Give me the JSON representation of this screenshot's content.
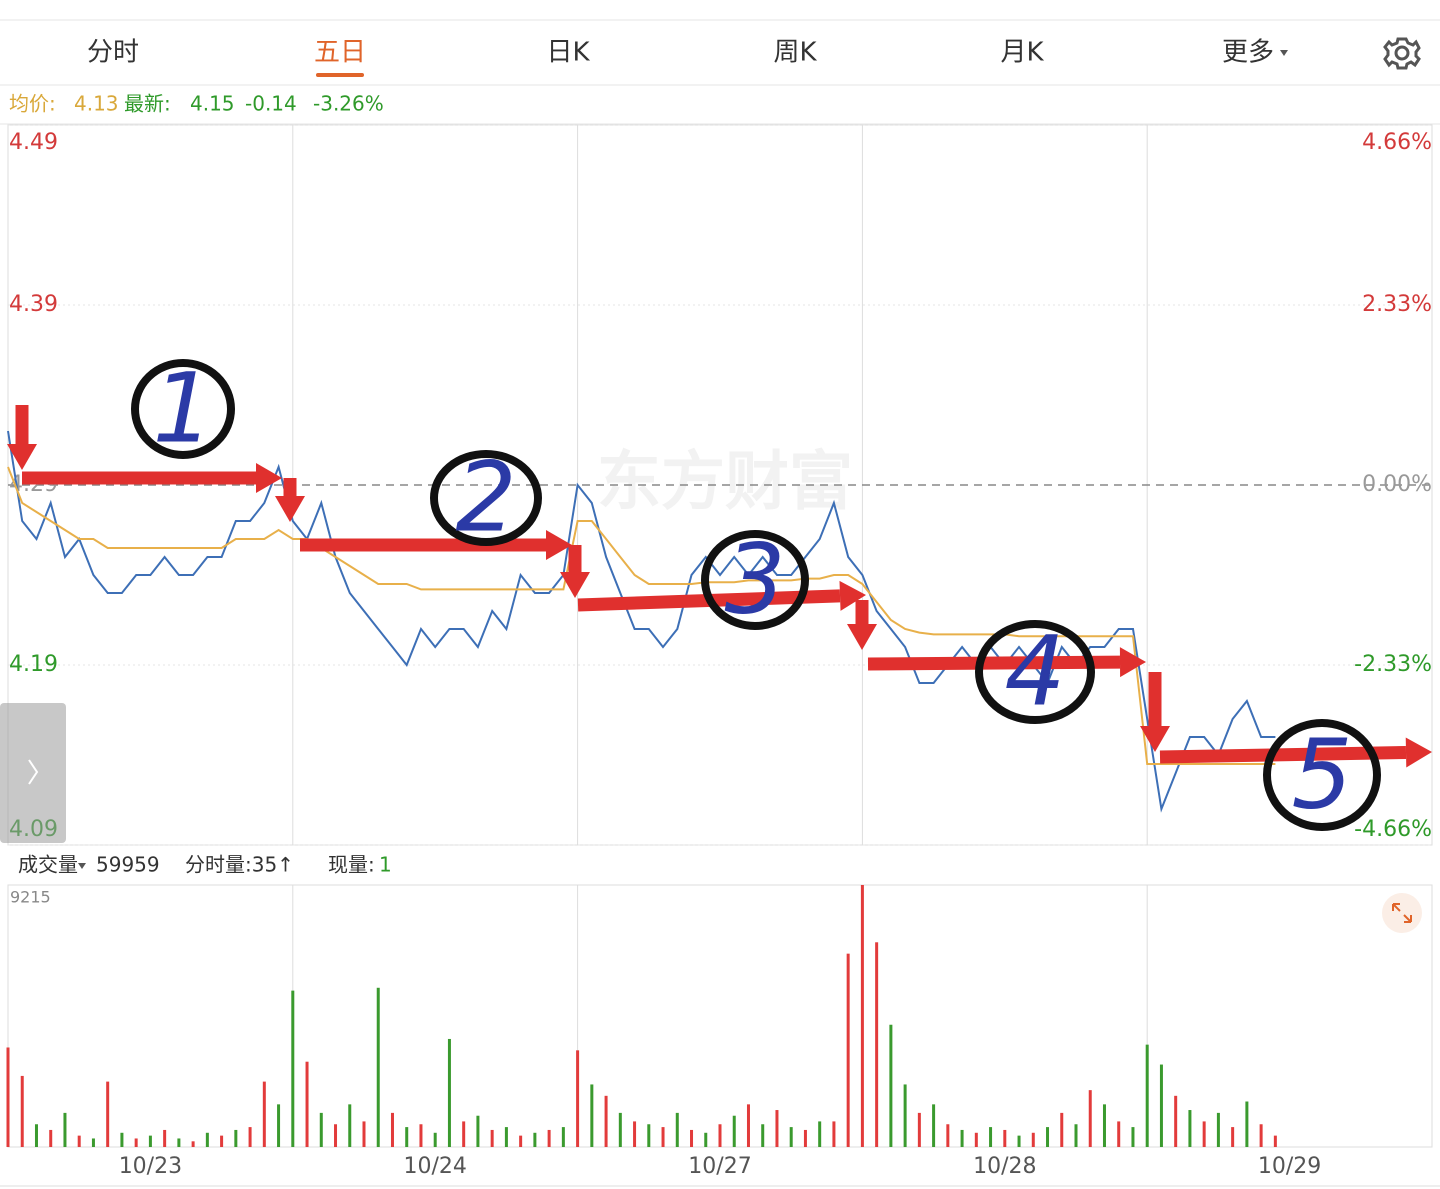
{
  "tabs": [
    "分时",
    "五日",
    "日K",
    "周K",
    "月K",
    "更多"
  ],
  "info": {
    "avg_label": "均价:",
    "avg": "4.13",
    "last_label": "最新:",
    "last": "4.15",
    "change": "-0.14",
    "change_pct": "-3.26%"
  },
  "watermark": "东方财富",
  "chart_data": [
    {
      "type": "line",
      "x": [
        0,
        1,
        2,
        3,
        4,
        5,
        6,
        7,
        8,
        9,
        10,
        11,
        12,
        13,
        14,
        15,
        16,
        17,
        18,
        19,
        20,
        21,
        22,
        23,
        24,
        25,
        26,
        27,
        28,
        29,
        30,
        31,
        32,
        33,
        34,
        35,
        36,
        37,
        38,
        39,
        40,
        41,
        42,
        43,
        44,
        45,
        46,
        47,
        48,
        49,
        50,
        51,
        52,
        53,
        54,
        55,
        56,
        57,
        58,
        59,
        60,
        61,
        62,
        63,
        64,
        65,
        66,
        67,
        68,
        69,
        70,
        71,
        72,
        73,
        74,
        75,
        76,
        77,
        78,
        79,
        80,
        81,
        82,
        83,
        84,
        85,
        86,
        87,
        88,
        89
      ],
      "xlim": [
        0,
        100
      ],
      "xticks": [
        {
          "value": 10,
          "label": "10/23"
        },
        {
          "value": 30,
          "label": "10/24"
        },
        {
          "value": 50,
          "label": "10/27"
        },
        {
          "value": 70,
          "label": "10/28"
        },
        {
          "value": 90,
          "label": "10/29"
        }
      ],
      "series": [
        {
          "color": "#3d6fb6",
          "values": [
            4.32,
            4.27,
            4.26,
            4.28,
            4.25,
            4.26,
            4.24,
            4.23,
            4.23,
            4.24,
            4.24,
            4.25,
            4.24,
            4.24,
            4.25,
            4.25,
            4.27,
            4.27,
            4.28,
            4.3,
            4.27,
            4.26,
            4.28,
            4.25,
            4.23,
            4.22,
            4.21,
            4.2,
            4.19,
            4.21,
            4.2,
            4.21,
            4.21,
            4.2,
            4.22,
            4.21,
            4.24,
            4.23,
            4.23,
            4.24,
            4.29,
            4.28,
            4.25,
            4.23,
            4.21,
            4.21,
            4.2,
            4.21,
            4.24,
            4.25,
            4.24,
            4.25,
            4.24,
            4.25,
            4.24,
            4.24,
            4.25,
            4.26,
            4.28,
            4.25,
            4.24,
            4.22,
            4.21,
            4.2,
            4.18,
            4.18,
            4.19,
            4.2,
            4.19,
            4.2,
            4.19,
            4.2,
            4.19,
            4.18,
            4.2,
            4.19,
            4.2,
            4.2,
            4.21,
            4.21,
            4.16,
            4.11,
            4.13,
            4.15,
            4.15,
            4.14,
            4.16,
            4.17,
            4.15,
            4.15
          ]
        },
        {
          "color": "#e8b04a",
          "values": [
            4.3,
            4.28,
            4.275,
            4.27,
            4.265,
            4.26,
            4.26,
            4.255,
            4.255,
            4.255,
            4.255,
            4.255,
            4.255,
            4.255,
            4.255,
            4.255,
            4.26,
            4.26,
            4.26,
            4.265,
            4.26,
            4.26,
            4.255,
            4.25,
            4.245,
            4.24,
            4.235,
            4.235,
            4.235,
            4.232,
            4.232,
            4.232,
            4.232,
            4.232,
            4.232,
            4.232,
            4.232,
            4.232,
            4.232,
            4.232,
            4.27,
            4.27,
            4.26,
            4.25,
            4.24,
            4.235,
            4.235,
            4.235,
            4.235,
            4.236,
            4.236,
            4.236,
            4.237,
            4.237,
            4.237,
            4.237,
            4.238,
            4.238,
            4.24,
            4.24,
            4.235,
            4.225,
            4.215,
            4.21,
            4.208,
            4.207,
            4.207,
            4.207,
            4.207,
            4.207,
            4.207,
            4.206,
            4.206,
            4.206,
            4.206,
            4.206,
            4.206,
            4.206,
            4.206,
            4.206,
            4.135,
            4.135,
            4.135,
            4.135,
            4.135,
            4.135,
            4.135,
            4.135,
            4.135,
            4.135
          ]
        }
      ],
      "ylim": [
        4.09,
        4.49
      ],
      "yticks": [
        4.49,
        4.39,
        4.29,
        4.19,
        4.09
      ],
      "reference": 4.29,
      "y2lim": [
        -4.66,
        4.66
      ],
      "y2ticks": [
        {
          "value": 4.66,
          "label": "4.66%"
        },
        {
          "value": 2.33,
          "label": "2.33%"
        },
        {
          "value": 0,
          "label": "0.00%"
        },
        {
          "value": -2.33,
          "label": "-2.33%"
        },
        {
          "value": -4.66,
          "label": "-4.66%"
        }
      ],
      "annotations": [
        "1",
        "2",
        "3",
        "4",
        "5"
      ]
    },
    {
      "type": "bar",
      "title": "成交量",
      "total": "59959",
      "minute_volume": "分时量:35↑",
      "current_label": "现量:",
      "current": "1",
      "x": [
        0,
        1,
        2,
        3,
        4,
        5,
        6,
        7,
        8,
        9,
        10,
        11,
        12,
        13,
        14,
        15,
        16,
        17,
        18,
        19,
        20,
        21,
        22,
        23,
        24,
        25,
        26,
        27,
        28,
        29,
        30,
        31,
        32,
        33,
        34,
        35,
        36,
        37,
        38,
        39,
        40,
        41,
        42,
        43,
        44,
        45,
        46,
        47,
        48,
        49,
        50,
        51,
        52,
        53,
        54,
        55,
        56,
        57,
        58,
        59,
        60,
        61,
        62,
        63,
        64,
        65,
        66,
        67,
        68,
        69,
        70,
        71,
        72,
        73,
        74,
        75,
        76,
        77,
        78,
        79,
        80,
        81,
        82,
        83,
        84,
        85,
        86,
        87,
        88,
        89
      ],
      "xlim": [
        0,
        100
      ],
      "values": [
        3500,
        2500,
        800,
        600,
        1200,
        400,
        300,
        2300,
        500,
        300,
        400,
        600,
        300,
        200,
        500,
        400,
        600,
        700,
        2300,
        1500,
        5500,
        3000,
        1200,
        800,
        1500,
        900,
        5600,
        1200,
        700,
        800,
        500,
        3800,
        900,
        1100,
        600,
        700,
        400,
        500,
        600,
        700,
        3400,
        2200,
        1800,
        1200,
        900,
        800,
        700,
        1200,
        600,
        500,
        800,
        1100,
        1500,
        800,
        1300,
        700,
        600,
        900,
        900,
        6800,
        9215,
        7200,
        4300,
        2200,
        1200,
        1500,
        800,
        600,
        500,
        700,
        600,
        400,
        500,
        700,
        1200,
        800,
        2000,
        1500,
        900,
        700,
        3600,
        2900,
        1800,
        1300,
        900,
        1200,
        700,
        1600,
        800,
        400
      ],
      "colors": [
        "#e23b3b",
        "#e23b3b",
        "#3a9a2e",
        "#e23b3b",
        "#3a9a2e",
        "#e23b3b",
        "#3a9a2e",
        "#e23b3b",
        "#3a9a2e",
        "#e23b3b",
        "#3a9a2e",
        "#e23b3b",
        "#3a9a2e",
        "#e23b3b",
        "#3a9a2e",
        "#e23b3b",
        "#3a9a2e",
        "#e23b3b",
        "#e23b3b",
        "#3a9a2e",
        "#3a9a2e",
        "#e23b3b",
        "#3a9a2e",
        "#e23b3b",
        "#3a9a2e",
        "#e23b3b",
        "#3a9a2e",
        "#e23b3b",
        "#3a9a2e",
        "#e23b3b",
        "#3a9a2e",
        "#3a9a2e",
        "#e23b3b",
        "#3a9a2e",
        "#e23b3b",
        "#3a9a2e",
        "#e23b3b",
        "#3a9a2e",
        "#e23b3b",
        "#3a9a2e",
        "#e23b3b",
        "#3a9a2e",
        "#e23b3b",
        "#3a9a2e",
        "#e23b3b",
        "#3a9a2e",
        "#e23b3b",
        "#3a9a2e",
        "#e23b3b",
        "#3a9a2e",
        "#e23b3b",
        "#3a9a2e",
        "#e23b3b",
        "#3a9a2e",
        "#e23b3b",
        "#3a9a2e",
        "#e23b3b",
        "#3a9a2e",
        "#e23b3b",
        "#e23b3b",
        "#e23b3b",
        "#e23b3b",
        "#3a9a2e",
        "#3a9a2e",
        "#e23b3b",
        "#3a9a2e",
        "#e23b3b",
        "#3a9a2e",
        "#e23b3b",
        "#3a9a2e",
        "#e23b3b",
        "#3a9a2e",
        "#e23b3b",
        "#3a9a2e",
        "#e23b3b",
        "#3a9a2e",
        "#e23b3b",
        "#3a9a2e",
        "#e23b3b",
        "#3a9a2e",
        "#3a9a2e",
        "#3a9a2e",
        "#e23b3b",
        "#3a9a2e",
        "#e23b3b",
        "#3a9a2e",
        "#e23b3b",
        "#3a9a2e",
        "#e23b3b",
        "#e23b3b"
      ],
      "ylim": [
        0,
        9215
      ],
      "yticks": [
        9215
      ]
    }
  ]
}
